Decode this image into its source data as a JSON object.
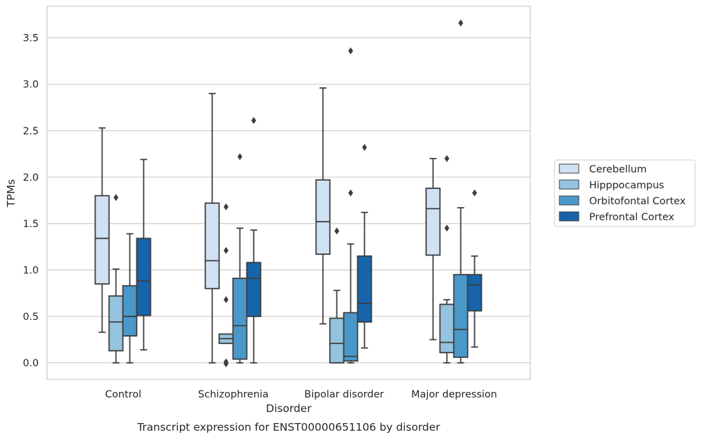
{
  "chart_data": {
    "type": "boxplot",
    "caption": "Transcript expression for ENST00000651106 by disorder",
    "xlabel": "Disorder",
    "ylabel": "TPMs",
    "ylim": [
      -0.17,
      3.85
    ],
    "yticks": [
      "0.0",
      "0.5",
      "1.0",
      "1.5",
      "2.0",
      "2.5",
      "3.0",
      "3.5"
    ],
    "grid": "horizontal",
    "legend_position": "right",
    "categories": [
      "Control",
      "Schizophrenia",
      "Bipolar disorder",
      "Major depression"
    ],
    "series": [
      {
        "name": "Cerebellum",
        "color": "#d0e1f2",
        "boxes": [
          {
            "whislo": 0.33,
            "q1": 0.85,
            "med": 1.34,
            "q3": 1.8,
            "whishi": 2.53,
            "fliers": []
          },
          {
            "whislo": 0.0,
            "q1": 0.8,
            "med": 1.1,
            "q3": 1.72,
            "whishi": 2.9,
            "fliers": []
          },
          {
            "whislo": 0.42,
            "q1": 1.17,
            "med": 1.52,
            "q3": 1.97,
            "whishi": 2.96,
            "fliers": []
          },
          {
            "whislo": 0.25,
            "q1": 1.16,
            "med": 1.66,
            "q3": 1.88,
            "whishi": 2.2,
            "fliers": []
          }
        ]
      },
      {
        "name": "Hipppocampus",
        "color": "#94c4df",
        "boxes": [
          {
            "whislo": 0.0,
            "q1": 0.13,
            "med": 0.44,
            "q3": 0.72,
            "whishi": 1.01,
            "fliers": [
              1.78
            ]
          },
          {
            "whislo": 0.21,
            "q1": 0.21,
            "med": 0.26,
            "q3": 0.31,
            "whishi": 0.31,
            "fliers": [
              1.68,
              1.21,
              0.68,
              0.01,
              -0.01
            ]
          },
          {
            "whislo": 0.0,
            "q1": 0.0,
            "med": 0.21,
            "q3": 0.48,
            "whishi": 0.78,
            "fliers": [
              1.42
            ]
          },
          {
            "whislo": 0.0,
            "q1": 0.11,
            "med": 0.22,
            "q3": 0.63,
            "whishi": 0.68,
            "fliers": [
              2.2,
              1.45
            ]
          }
        ]
      },
      {
        "name": "Orbitofontal Cortex",
        "color": "#4a98c9",
        "boxes": [
          {
            "whislo": 0.0,
            "q1": 0.29,
            "med": 0.5,
            "q3": 0.83,
            "whishi": 1.39,
            "fliers": []
          },
          {
            "whislo": 0.0,
            "q1": 0.04,
            "med": 0.4,
            "q3": 0.91,
            "whishi": 1.45,
            "fliers": [
              2.22
            ]
          },
          {
            "whislo": 0.0,
            "q1": 0.02,
            "med": 0.07,
            "q3": 0.54,
            "whishi": 1.28,
            "fliers": [
              3.36,
              1.83
            ]
          },
          {
            "whislo": 0.0,
            "q1": 0.06,
            "med": 0.36,
            "q3": 0.95,
            "whishi": 1.67,
            "fliers": [
              3.66
            ]
          }
        ]
      },
      {
        "name": "Prefrontal Cortex",
        "color": "#1764ab",
        "boxes": [
          {
            "whislo": 0.14,
            "q1": 0.51,
            "med": 0.88,
            "q3": 1.34,
            "whishi": 2.19,
            "fliers": []
          },
          {
            "whislo": 0.0,
            "q1": 0.5,
            "med": 0.91,
            "q3": 1.08,
            "whishi": 1.43,
            "fliers": [
              2.61
            ]
          },
          {
            "whislo": 0.16,
            "q1": 0.44,
            "med": 0.64,
            "q3": 1.15,
            "whishi": 1.62,
            "fliers": [
              2.32
            ]
          },
          {
            "whislo": 0.17,
            "q1": 0.56,
            "med": 0.84,
            "q3": 0.95,
            "whishi": 1.15,
            "fliers": [
              1.83
            ]
          }
        ]
      }
    ]
  }
}
